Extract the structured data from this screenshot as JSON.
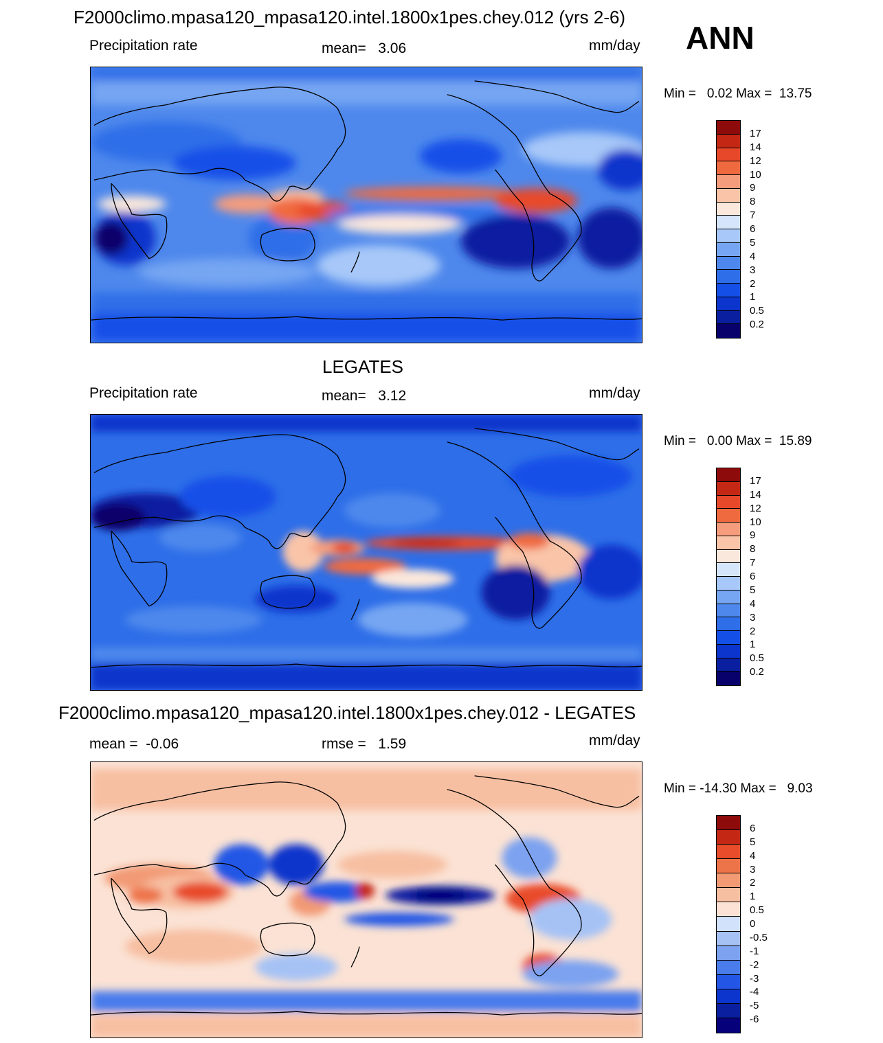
{
  "season": "ANN",
  "colors": {
    "precip_scale": [
      "#08006b",
      "#0a1fa0",
      "#0b35cc",
      "#1450e8",
      "#2e6ee8",
      "#4e88ec",
      "#76a6f2",
      "#a7c8f8",
      "#d5e6fb",
      "#fbe8dc",
      "#f9c4a8",
      "#f59c7d",
      "#f06a3f",
      "#e8482a",
      "#c42814",
      "#8e0b0b"
    ],
    "diff_scale": [
      "#06007a",
      "#0a1fa0",
      "#0b35cc",
      "#2356e5",
      "#4a7ceb",
      "#7ca2f0",
      "#a6c2f5",
      "#d2e2fa",
      "#fbe2d4",
      "#f7bfa2",
      "#f29a74",
      "#ed7348",
      "#e84c2a",
      "#c42814",
      "#8e0b0b"
    ]
  },
  "panels": [
    {
      "title": "F2000climo.mpasa120_mpasa120.intel.1800x1pes.chey.012 (yrs 2-6)",
      "left_label": "Precipitation rate",
      "center_label": "mean=   3.06",
      "units": "mm/day",
      "minmax": "Min =   0.02 Max =  13.75",
      "colorbar_labels": [
        "17",
        "14",
        "12",
        "10",
        "9",
        "8",
        "7",
        "6",
        "5",
        "4",
        "3",
        "2",
        "1",
        "0.5",
        "0.2"
      ],
      "scale": "precip"
    },
    {
      "title": "LEGATES",
      "left_label": "Precipitation rate",
      "center_label": "mean=   3.12",
      "units": "mm/day",
      "minmax": "Min =   0.00 Max =  15.89",
      "colorbar_labels": [
        "17",
        "14",
        "12",
        "10",
        "9",
        "8",
        "7",
        "6",
        "5",
        "4",
        "3",
        "2",
        "1",
        "0.5",
        "0.2"
      ],
      "scale": "precip"
    },
    {
      "title": "F2000climo.mpasa120_mpasa120.intel.1800x1pes.chey.012 - LEGATES",
      "left_label": "mean =  -0.06",
      "center_label": "rmse =   1.59",
      "units": "mm/day",
      "minmax": "Min = -14.30 Max =   9.03",
      "colorbar_labels": [
        "6",
        "5",
        "4",
        "3",
        "2",
        "1",
        "0.5",
        "0",
        "-0.5",
        "-1",
        "-2",
        "-3",
        "-4",
        "-5",
        "-6"
      ],
      "scale": "diff"
    }
  ]
}
